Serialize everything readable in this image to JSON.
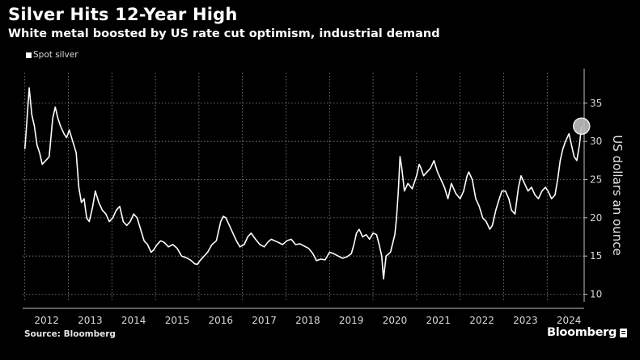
{
  "header": {
    "title": "Silver Hits 12-Year High",
    "subtitle": "White metal boosted by US rate cut optimism, industrial demand"
  },
  "footer": {
    "source": "Source: Bloomberg",
    "brand": "Bloomberg"
  },
  "colors": {
    "background": "#000000",
    "line": "#ffffff",
    "grid": "#8c8c8c",
    "highlight": "#bfbfbf"
  },
  "chart_data": {
    "type": "line",
    "title": "Silver Hits 12-Year High",
    "subtitle": "White metal boosted by US rate cut optimism, industrial demand",
    "ylabel": "US dollars an ounce",
    "xlabel": "",
    "ylim": [
      9,
      39
    ],
    "xlim": [
      2011.95,
      2024.85
    ],
    "yticks": [
      10,
      15,
      20,
      25,
      30,
      35
    ],
    "xticks": [
      "2012",
      "2013",
      "2014",
      "2015",
      "2016",
      "2017",
      "2018",
      "2019",
      "2020",
      "2021",
      "2022",
      "2023",
      "2024"
    ],
    "grid": true,
    "legend_position": "top-left",
    "highlight_point": {
      "x": 2024.79,
      "y": 32.0
    },
    "series": [
      {
        "name": "Spot silver",
        "x": [
          2012.0,
          2012.04,
          2012.1,
          2012.16,
          2012.22,
          2012.28,
          2012.34,
          2012.4,
          2012.48,
          2012.56,
          2012.64,
          2012.7,
          2012.76,
          2012.82,
          2012.9,
          2012.96,
          2013.02,
          2013.1,
          2013.18,
          2013.24,
          2013.3,
          2013.36,
          2013.42,
          2013.48,
          2013.56,
          2013.62,
          2013.7,
          2013.78,
          2013.86,
          2013.94,
          2014.02,
          2014.1,
          2014.18,
          2014.26,
          2014.34,
          2014.42,
          2014.5,
          2014.58,
          2014.66,
          2014.74,
          2014.82,
          2014.9,
          2014.96,
          2015.04,
          2015.12,
          2015.2,
          2015.3,
          2015.4,
          2015.5,
          2015.6,
          2015.7,
          2015.8,
          2015.9,
          2015.96,
          2016.04,
          2016.12,
          2016.2,
          2016.3,
          2016.4,
          2016.5,
          2016.56,
          2016.62,
          2016.7,
          2016.78,
          2016.86,
          2016.94,
          2017.04,
          2017.12,
          2017.2,
          2017.3,
          2017.4,
          2017.5,
          2017.58,
          2017.66,
          2017.74,
          2017.82,
          2017.92,
          2018.02,
          2018.12,
          2018.22,
          2018.32,
          2018.42,
          2018.52,
          2018.62,
          2018.7,
          2018.8,
          2018.9,
          2019.0,
          2019.1,
          2019.2,
          2019.3,
          2019.4,
          2019.5,
          2019.56,
          2019.62,
          2019.68,
          2019.76,
          2019.84,
          2019.92,
          2020.0,
          2020.08,
          2020.14,
          2020.2,
          2020.24,
          2020.3,
          2020.4,
          2020.5,
          2020.54,
          2020.58,
          2020.62,
          2020.66,
          2020.72,
          2020.8,
          2020.9,
          2021.0,
          2021.06,
          2021.1,
          2021.16,
          2021.24,
          2021.32,
          2021.4,
          2021.48,
          2021.56,
          2021.64,
          2021.72,
          2021.8,
          2021.9,
          2022.0,
          2022.08,
          2022.16,
          2022.2,
          2022.28,
          2022.36,
          2022.44,
          2022.52,
          2022.6,
          2022.68,
          2022.74,
          2022.82,
          2022.9,
          2022.96,
          2023.04,
          2023.12,
          2023.18,
          2023.26,
          2023.34,
          2023.4,
          2023.48,
          2023.56,
          2023.64,
          2023.72,
          2023.8,
          2023.88,
          2023.96,
          2024.02,
          2024.1,
          2024.18,
          2024.24,
          2024.3,
          2024.36,
          2024.42,
          2024.5,
          2024.56,
          2024.62,
          2024.68,
          2024.74,
          2024.79
        ],
        "values": [
          29.0,
          32.0,
          37.0,
          33.5,
          32.0,
          29.5,
          28.5,
          27.0,
          27.5,
          28.0,
          33.0,
          34.5,
          33.0,
          32.0,
          31.0,
          30.5,
          31.5,
          30.0,
          28.5,
          24.0,
          22.0,
          22.5,
          20.0,
          19.5,
          21.5,
          23.5,
          22.0,
          21.0,
          20.5,
          19.5,
          20.0,
          21.0,
          21.5,
          19.5,
          19.0,
          19.5,
          20.5,
          20.0,
          18.5,
          17.0,
          16.5,
          15.5,
          15.8,
          16.5,
          17.0,
          16.8,
          16.2,
          16.5,
          16.0,
          15.0,
          14.8,
          14.5,
          14.0,
          13.9,
          14.5,
          15.0,
          15.5,
          16.5,
          17.0,
          19.5,
          20.2,
          20.0,
          19.0,
          18.0,
          17.0,
          16.2,
          16.5,
          17.5,
          18.0,
          17.2,
          16.5,
          16.2,
          16.8,
          17.2,
          17.0,
          16.8,
          16.5,
          17.0,
          17.2,
          16.5,
          16.6,
          16.3,
          16.0,
          15.3,
          14.4,
          14.6,
          14.5,
          15.5,
          15.3,
          15.0,
          14.7,
          14.9,
          15.3,
          16.5,
          18.0,
          18.5,
          17.5,
          17.8,
          17.2,
          18.0,
          17.8,
          16.5,
          15.0,
          12.0,
          15.0,
          15.5,
          17.8,
          20.0,
          23.5,
          28.0,
          26.5,
          23.5,
          24.5,
          23.8,
          25.5,
          27.0,
          26.5,
          25.5,
          26.0,
          26.5,
          27.5,
          26.0,
          25.0,
          24.0,
          22.5,
          24.5,
          23.2,
          22.5,
          23.5,
          25.5,
          26.0,
          25.0,
          22.5,
          21.5,
          20.0,
          19.5,
          18.5,
          19.0,
          21.0,
          22.5,
          23.5,
          23.5,
          22.5,
          21.0,
          20.5,
          24.0,
          25.5,
          24.5,
          23.5,
          24.0,
          23.0,
          22.5,
          23.5,
          24.0,
          23.5,
          22.5,
          23.0,
          25.0,
          27.5,
          29.0,
          30.0,
          31.0,
          29.5,
          28.0,
          27.5,
          29.5,
          32.0
        ]
      }
    ]
  }
}
